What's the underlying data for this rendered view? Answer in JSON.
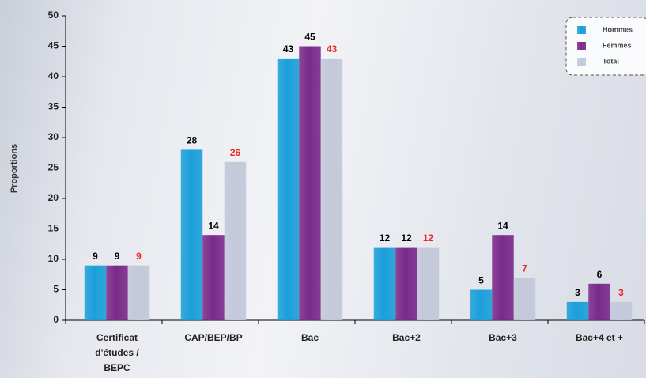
{
  "chart_data": {
    "type": "bar",
    "y_label": "Proportions",
    "categories": [
      "Certificat d'études / BEPC",
      "CAP/BEP/BP",
      "Bac",
      "Bac+2",
      "Bac+3",
      "Bac+4 et +"
    ],
    "series": [
      {
        "name": "Hommes",
        "color": "#1b9fd9",
        "label_color": "#000000",
        "values": [
          9,
          28,
          43,
          12,
          5,
          3
        ]
      },
      {
        "name": "Femmes",
        "color": "#7a2a8a",
        "label_color": "#000000",
        "values": [
          9,
          14,
          45,
          12,
          14,
          6
        ]
      },
      {
        "name": "Total",
        "color": "#c3c8da",
        "label_color": "#e8282b",
        "values": [
          9,
          26,
          43,
          12,
          7,
          3
        ]
      }
    ],
    "ylim": [
      0,
      50
    ],
    "yticks": [
      0,
      5,
      10,
      15,
      20,
      25,
      30,
      35,
      40,
      45,
      50
    ],
    "legend": "top-right"
  }
}
